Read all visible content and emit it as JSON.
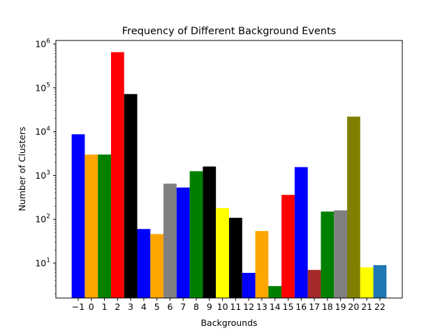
{
  "chart_data": {
    "type": "bar",
    "title": "Frequency of Different Background Events",
    "xlabel": "Backgrounds",
    "ylabel": "Number of Clusters",
    "yscale": "log",
    "ylim": [
      1.6,
      1200000
    ],
    "grid": false,
    "legend": "none",
    "categories": [
      "−1",
      "0",
      "1",
      "2",
      "3",
      "4",
      "5",
      "6",
      "7",
      "8",
      "9",
      "10",
      "11",
      "12",
      "13",
      "14",
      "15",
      "16",
      "17",
      "18",
      "19",
      "20",
      "21",
      "22"
    ],
    "values": [
      8700,
      3000,
      3000,
      650000,
      72000,
      60,
      46,
      650,
      530,
      1250,
      1600,
      180,
      108,
      6,
      54,
      3,
      360,
      1550,
      7,
      150,
      160,
      22000,
      8,
      9
    ],
    "colors": [
      "#0000ff",
      "#ffa500",
      "#008000",
      "#ff0000",
      "#000000",
      "#0000ff",
      "#ffa500",
      "#808080",
      "#0000ff",
      "#008000",
      "#000000",
      "#ffff00",
      "#000000",
      "#0000ff",
      "#ffa500",
      "#008000",
      "#ff0000",
      "#0000ff",
      "#a52a2a",
      "#008000",
      "#808080",
      "#808000",
      "#ffff00",
      "#1f77b4"
    ],
    "y_ticks": [
      {
        "value": 10,
        "base": "10",
        "exp": "1"
      },
      {
        "value": 100,
        "base": "10",
        "exp": "2"
      },
      {
        "value": 1000,
        "base": "10",
        "exp": "3"
      },
      {
        "value": 10000,
        "base": "10",
        "exp": "4"
      },
      {
        "value": 100000,
        "base": "10",
        "exp": "5"
      },
      {
        "value": 1000000,
        "base": "10",
        "exp": "6"
      }
    ]
  }
}
